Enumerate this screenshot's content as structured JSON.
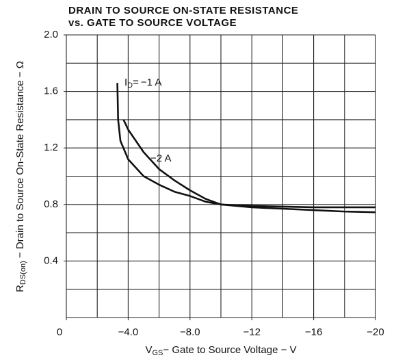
{
  "chart_data": {
    "type": "line",
    "title": [
      "DRAIN TO SOURCE ON-STATE RESISTANCE",
      "vs. GATE TO SOURCE VOLTAGE"
    ],
    "xlabel": {
      "main": "V",
      "sub": "GS",
      "rest": "− Gate to Source Voltage − V"
    },
    "ylabel": {
      "main": "R",
      "sub": "DS(on)",
      "rest": " − Drain to Source On-State Resistance − Ω"
    },
    "id_label": {
      "main": "I",
      "sub": "D",
      "rest": "="
    },
    "xlim": [
      0,
      -20
    ],
    "ylim": [
      0,
      2.0
    ],
    "xticks": [
      0,
      {
        "value": -4,
        "label": "−4.0"
      },
      {
        "value": -8,
        "label": "−8.0"
      },
      {
        "value": -12,
        "label": "−12"
      },
      {
        "value": -16,
        "label": "−16"
      },
      {
        "value": -20,
        "label": "−20"
      }
    ],
    "yticks": [
      0.4,
      0.8,
      1.2,
      1.6,
      {
        "value": 2.0,
        "label": "2.0"
      }
    ],
    "xgrid": [
      0,
      -2,
      -4,
      -6,
      -8,
      -10,
      -12,
      -14,
      -16,
      -18,
      -20
    ],
    "ygrid": [
      0,
      0.2,
      0.4,
      0.6,
      0.8,
      1.0,
      1.2,
      1.4,
      1.6,
      1.8,
      2.0
    ],
    "grid": true,
    "series": [
      {
        "name": "−1 A",
        "color": "#111111",
        "x": [
          -3.3,
          -3.35,
          -3.5,
          -4,
          -5,
          -6,
          -7,
          -8,
          -9,
          -10,
          -12,
          -14,
          -16,
          -18,
          -20
        ],
        "values": [
          1.66,
          1.4,
          1.25,
          1.12,
          1.0,
          0.94,
          0.89,
          0.86,
          0.82,
          0.8,
          0.78,
          0.77,
          0.76,
          0.75,
          0.745
        ]
      },
      {
        "name": "−2 A",
        "color": "#111111",
        "x": [
          -3.7,
          -4,
          -5,
          -6,
          -7,
          -8,
          -9,
          -10,
          -12,
          -14,
          -16,
          -18,
          -20
        ],
        "values": [
          1.4,
          1.33,
          1.17,
          1.05,
          0.97,
          0.9,
          0.84,
          0.8,
          0.79,
          0.785,
          0.78,
          0.78,
          0.78
        ]
      }
    ]
  }
}
